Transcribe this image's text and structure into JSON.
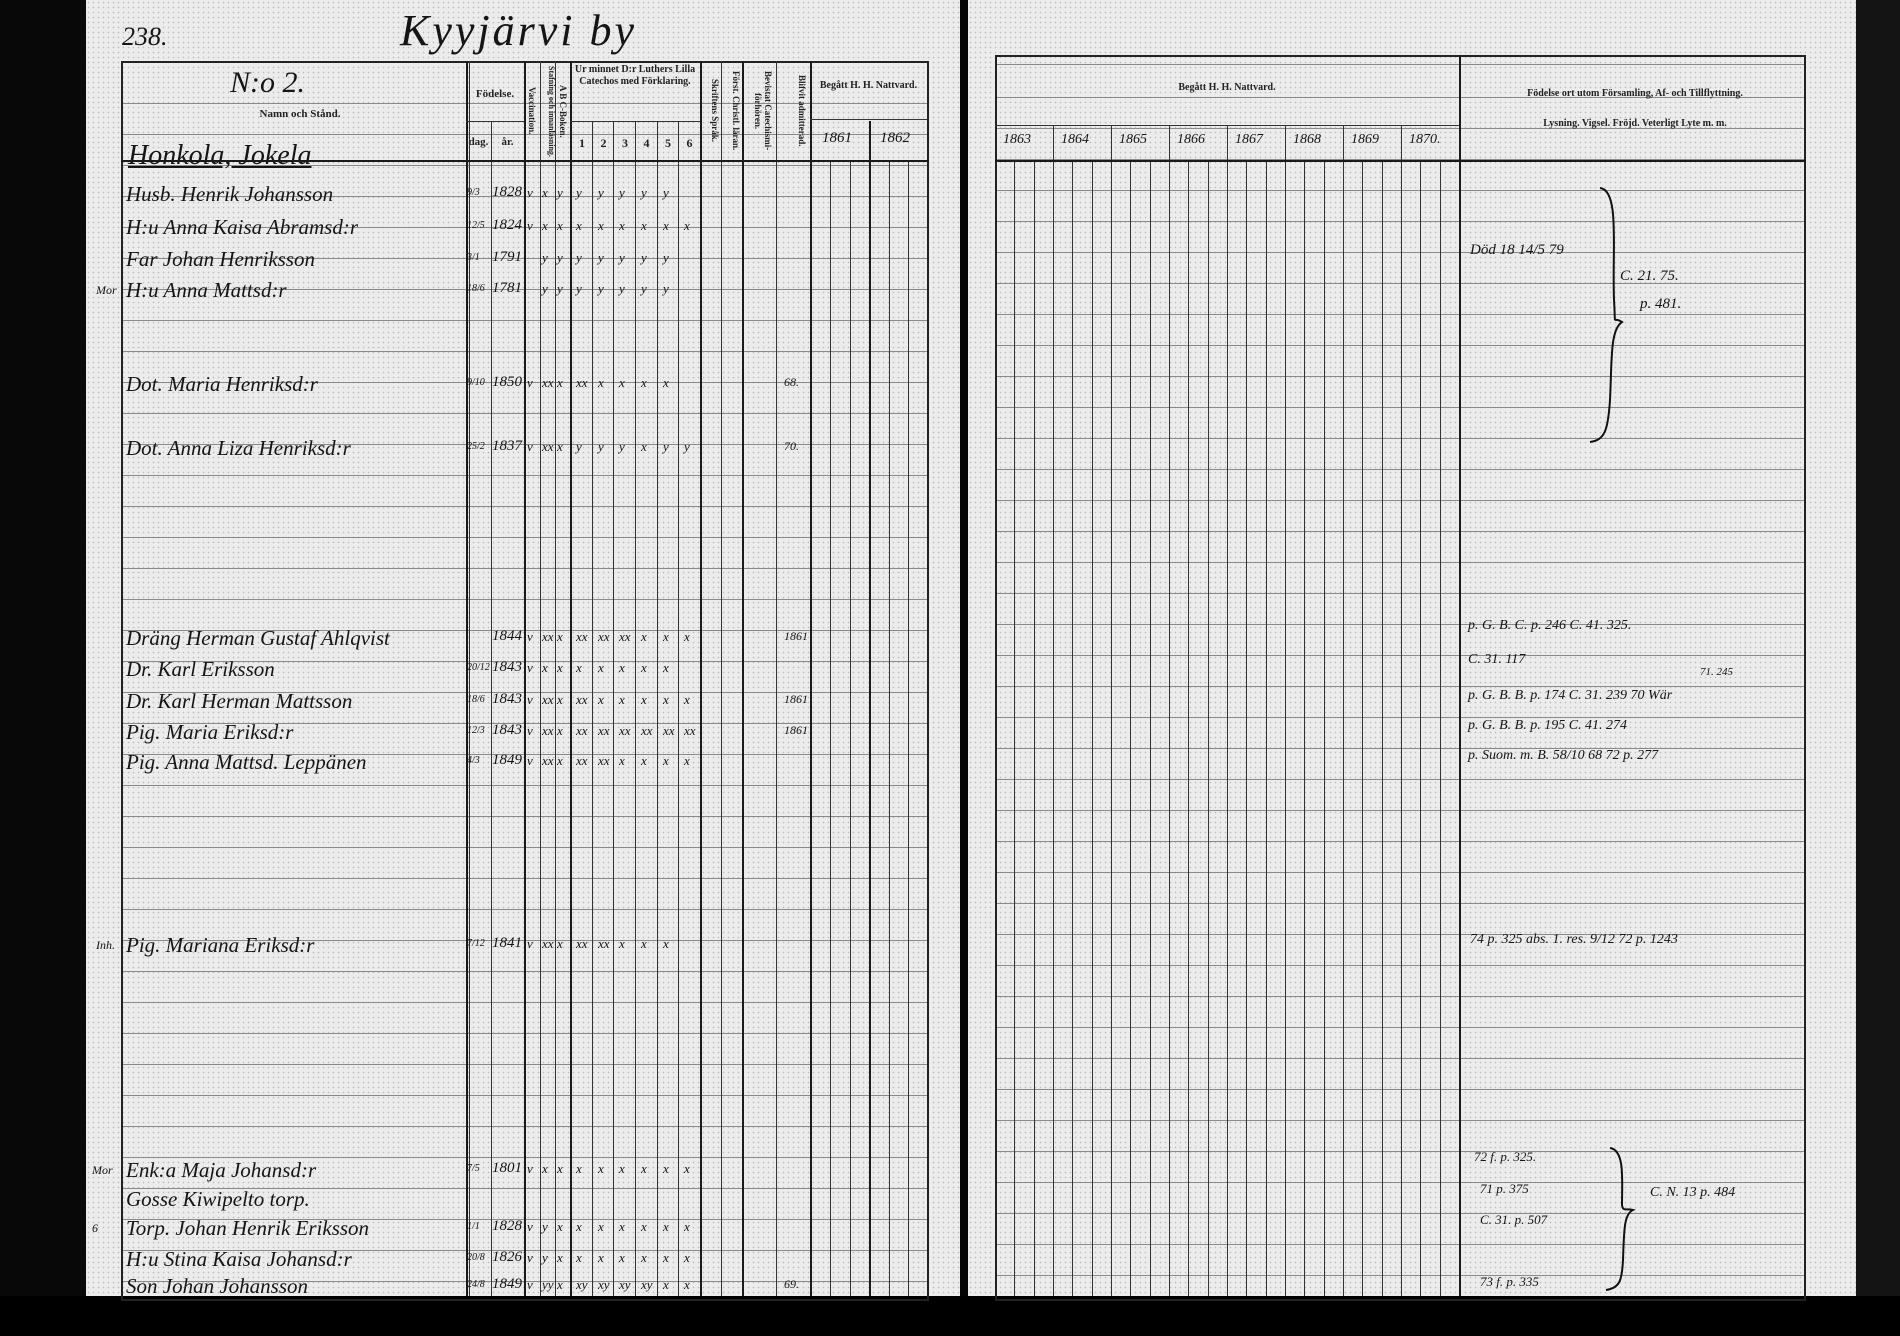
{
  "left_page": {
    "page_number": "238.",
    "village_title": "Kyyjärvi by",
    "register_no": "N:o 2.",
    "section_heading": "Honkola, Jokela",
    "headers": {
      "name": "Namn och Stånd.",
      "birth": "Födelse.",
      "birth_day": "dag.",
      "birth_year": "år.",
      "vaccination": "Vaccination.",
      "reading": "Stafning och innanläsning.",
      "abc": "A B C-Boken.",
      "catechism": "Ur minnet D:r Luthers Lilla Catechos med Förklaring.",
      "catechism_cols": [
        "1",
        "2",
        "3",
        "4",
        "5",
        "6"
      ],
      "scripture": "Skriftens Språk.",
      "christian_doctrine": "Först. Christl. läran.",
      "catechism_exams": "Bevistat Catechismi-förhören.",
      "admitted": "Blifvit admitterad.",
      "communion": "Begått H. H. Nattvard.",
      "communion_years": [
        "1861",
        "1862"
      ]
    },
    "rows": [
      {
        "margin": "",
        "name": "Husb. Henrik Johansson",
        "day": "9/3",
        "year": "1828",
        "marks": [
          "v",
          "x",
          "y",
          "y",
          "y",
          "y",
          "y",
          "y"
        ],
        "admitted": ""
      },
      {
        "margin": "",
        "name": "H:u Anna Kaisa Abramsd:r",
        "day": "12/5",
        "year": "1824",
        "marks": [
          "v",
          "x",
          "x",
          "x",
          "x",
          "x",
          "x",
          "x",
          "x"
        ],
        "admitted": ""
      },
      {
        "margin": "",
        "name": "Far Johan Henriksson",
        "day": "3/1",
        "year": "1791",
        "marks": [
          "",
          "y",
          "y",
          "y",
          "y",
          "y",
          "y",
          "y"
        ],
        "admitted": ""
      },
      {
        "margin": "Mor",
        "name": "H:u Anna Mattsd:r",
        "day": "18/6",
        "year": "1781",
        "marks": [
          "",
          "y",
          "y",
          "y",
          "y",
          "y",
          "y",
          "y"
        ],
        "admitted": ""
      },
      {
        "margin": "",
        "name": "Dot. Maria Henriksd:r",
        "day": "9/10",
        "year": "1850",
        "marks": [
          "v",
          "xx",
          "x",
          "xx",
          "x",
          "x",
          "x",
          "x"
        ],
        "admitted": "68."
      },
      {
        "margin": "",
        "name": "Dot. Anna Liza Henriksd:r",
        "day": "25/2",
        "year": "1837",
        "marks": [
          "v",
          "xx",
          "x",
          "y",
          "y",
          "y",
          "x",
          "y",
          "y"
        ],
        "admitted": "70."
      },
      {
        "margin": "",
        "name": "Dräng Herman Gustaf Ahlqvist",
        "day": "",
        "year": "1844",
        "marks": [
          "v",
          "xx",
          "x",
          "xx",
          "xx",
          "xx",
          "x",
          "x",
          "x"
        ],
        "admitted": "1861"
      },
      {
        "margin": "",
        "name": "Dr. Karl Eriksson",
        "day": "20/12",
        "year": "1843",
        "marks": [
          "v",
          "x",
          "x",
          "x",
          "x",
          "x",
          "x",
          "x"
        ],
        "admitted": ""
      },
      {
        "margin": "",
        "name": "Dr. Karl Herman Mattsson",
        "day": "18/6",
        "year": "1843",
        "marks": [
          "v",
          "xx",
          "x",
          "xx",
          "x",
          "x",
          "x",
          "x",
          "x"
        ],
        "admitted": "1861"
      },
      {
        "margin": "",
        "name": "Pig. Maria Eriksd:r",
        "day": "12/3",
        "year": "1843",
        "marks": [
          "v",
          "xx",
          "x",
          "xx",
          "xx",
          "xx",
          "xx",
          "xx",
          "xx"
        ],
        "admitted": "1861"
      },
      {
        "margin": "",
        "name": "Pig. Anna Mattsd. Leppänen",
        "day": "4/3",
        "year": "1849",
        "marks": [
          "v",
          "xx",
          "x",
          "xx",
          "xx",
          "x",
          "x",
          "x",
          "x"
        ],
        "admitted": ""
      },
      {
        "margin": "Inh.",
        "name": "Pig. Mariana Eriksd:r",
        "day": "7/12",
        "year": "1841",
        "marks": [
          "v",
          "xx",
          "x",
          "xx",
          "xx",
          "x",
          "x",
          "x"
        ],
        "admitted": ""
      },
      {
        "margin": "Mor",
        "name": "Enk:a Maja Johansd:r",
        "day": "7/5",
        "year": "1801",
        "marks": [
          "v",
          "x",
          "x",
          "x",
          "x",
          "x",
          "x",
          "x",
          "x"
        ],
        "admitted": ""
      },
      {
        "margin": "",
        "name": "Gosse Kiwipelto torp.",
        "day": "",
        "year": "",
        "marks": [],
        "admitted": ""
      },
      {
        "margin": "6",
        "name": "Torp. Johan Henrik Eriksson",
        "day": "1/1",
        "year": "1828",
        "marks": [
          "v",
          "y",
          "x",
          "x",
          "x",
          "x",
          "x",
          "x",
          "x"
        ],
        "admitted": ""
      },
      {
        "margin": "",
        "name": "H:u Stina Kaisa Johansd:r",
        "day": "20/8",
        "year": "1826",
        "marks": [
          "v",
          "y",
          "x",
          "x",
          "x",
          "x",
          "x",
          "x",
          "x"
        ],
        "admitted": ""
      },
      {
        "margin": "",
        "name": "Son Johan Johansson",
        "day": "24/8",
        "year": "1849",
        "marks": [
          "v",
          "yy",
          "x",
          "xy",
          "xy",
          "xy",
          "xy",
          "x",
          "x"
        ],
        "admitted": "69."
      }
    ]
  },
  "right_page": {
    "headers": {
      "communion": "Begått H. H. Nattvard.",
      "communion_years": [
        "1863",
        "1864",
        "1865",
        "1866",
        "1867",
        "1868",
        "1869",
        "1870."
      ],
      "remarks_line1": "Födelse ort utom Församling, Af- och Tillflyttning.",
      "remarks_line2": "Lysning. Vigsel. Fröjd. Veterligt Lyte m. m."
    },
    "notes": [
      "Död 18 14/5 79",
      "C. 21. 75.",
      "p. 481.",
      "p. G. B. C. p. 246 C. 41. 325.",
      "C. 31. 117",
      "p. G. B. B. p. 174 C. 31. 239 70 Wär",
      "71. 245",
      "p. G. B. B. p. 195 C. 41. 274",
      "p. Suom. m. B. 58/10 68 72 p. 277",
      "74 p. 325 abs. 1. res. 9/12 72 p. 1243",
      "72 f. p. 325.",
      "71 p. 375",
      "C. 31. p. 507",
      "C. N. 13 p. 484",
      "73 f. p. 335"
    ]
  },
  "colors": {
    "paper": "#ececec",
    "ink": "#151515",
    "scan_border": "#000000"
  }
}
